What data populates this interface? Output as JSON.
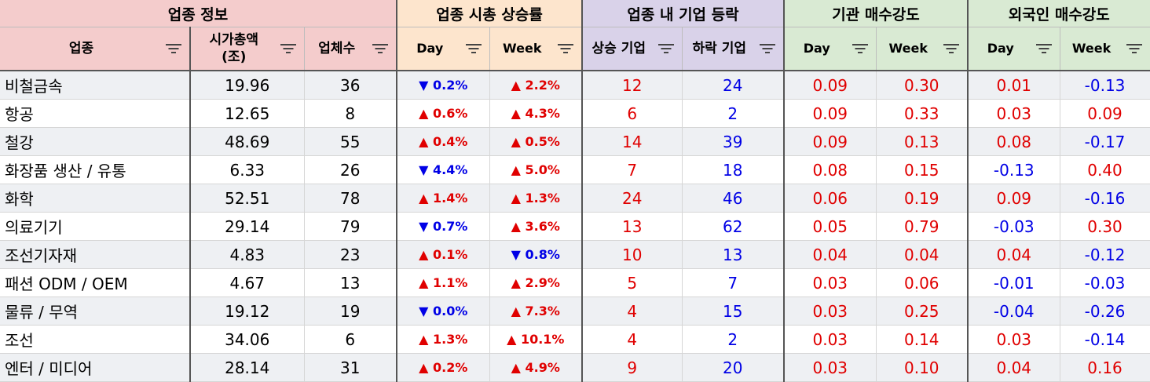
{
  "groups": {
    "info": "업종 정보",
    "mcap_change": "업종 시총 상승률",
    "updown": "업종 내 기업 등락",
    "inst": "기관 매수강도",
    "foreign": "외국인 매수강도"
  },
  "columns": {
    "sector": "업종",
    "mcap_line1": "시가총액",
    "mcap_line2": "(조)",
    "count": "업체수",
    "day": "Day",
    "week": "Week",
    "up": "상승 기업",
    "down": "하락 기업",
    "inst_day": "Day",
    "inst_week": "Week",
    "for_day": "Day",
    "for_week": "Week"
  },
  "colors": {
    "up": "#e00000",
    "down": "#0000e6"
  },
  "rows": [
    {
      "sector": "비철금속",
      "mcap": "19.96",
      "count": "36",
      "day": "▼ 0.2%",
      "day_dir": "down",
      "week": "▲ 2.2%",
      "week_dir": "up",
      "up": "12",
      "down": "24",
      "inst_day": "0.09",
      "inst_week": "0.30",
      "for_day": "0.01",
      "for_week": "-0.13"
    },
    {
      "sector": "항공",
      "mcap": "12.65",
      "count": "8",
      "day": "▲ 0.6%",
      "day_dir": "up",
      "week": "▲ 4.3%",
      "week_dir": "up",
      "up": "6",
      "down": "2",
      "inst_day": "0.09",
      "inst_week": "0.33",
      "for_day": "0.03",
      "for_week": "0.09"
    },
    {
      "sector": "철강",
      "mcap": "48.69",
      "count": "55",
      "day": "▲ 0.4%",
      "day_dir": "up",
      "week": "▲ 0.5%",
      "week_dir": "up",
      "up": "14",
      "down": "39",
      "inst_day": "0.09",
      "inst_week": "0.13",
      "for_day": "0.08",
      "for_week": "-0.17"
    },
    {
      "sector": "화장품 생산 / 유통",
      "mcap": "6.33",
      "count": "26",
      "day": "▼ 4.4%",
      "day_dir": "down",
      "week": "▲ 5.0%",
      "week_dir": "up",
      "up": "7",
      "down": "18",
      "inst_day": "0.08",
      "inst_week": "0.15",
      "for_day": "-0.13",
      "for_week": "0.40"
    },
    {
      "sector": "화학",
      "mcap": "52.51",
      "count": "78",
      "day": "▲ 1.4%",
      "day_dir": "up",
      "week": "▲ 1.3%",
      "week_dir": "up",
      "up": "24",
      "down": "46",
      "inst_day": "0.06",
      "inst_week": "0.19",
      "for_day": "0.09",
      "for_week": "-0.16"
    },
    {
      "sector": "의료기기",
      "mcap": "29.14",
      "count": "79",
      "day": "▼ 0.7%",
      "day_dir": "down",
      "week": "▲ 3.6%",
      "week_dir": "up",
      "up": "13",
      "down": "62",
      "inst_day": "0.05",
      "inst_week": "0.79",
      "for_day": "-0.03",
      "for_week": "0.30"
    },
    {
      "sector": "조선기자재",
      "mcap": "4.83",
      "count": "23",
      "day": "▲ 0.1%",
      "day_dir": "up",
      "week": "▼ 0.8%",
      "week_dir": "down",
      "up": "10",
      "down": "13",
      "inst_day": "0.04",
      "inst_week": "0.04",
      "for_day": "0.04",
      "for_week": "-0.12"
    },
    {
      "sector": "패션 ODM / OEM",
      "mcap": "4.67",
      "count": "13",
      "day": "▲ 1.1%",
      "day_dir": "up",
      "week": "▲ 2.9%",
      "week_dir": "up",
      "up": "5",
      "down": "7",
      "inst_day": "0.03",
      "inst_week": "0.06",
      "for_day": "-0.01",
      "for_week": "-0.03"
    },
    {
      "sector": "물류 / 무역",
      "mcap": "19.12",
      "count": "19",
      "day": "▼ 0.0%",
      "day_dir": "down",
      "week": "▲ 7.3%",
      "week_dir": "up",
      "up": "4",
      "down": "15",
      "inst_day": "0.03",
      "inst_week": "0.25",
      "for_day": "-0.04",
      "for_week": "-0.26"
    },
    {
      "sector": "조선",
      "mcap": "34.06",
      "count": "6",
      "day": "▲ 1.3%",
      "day_dir": "up",
      "week": "▲ 10.1%",
      "week_dir": "up",
      "up": "4",
      "down": "2",
      "inst_day": "0.03",
      "inst_week": "0.14",
      "for_day": "0.03",
      "for_week": "-0.14"
    },
    {
      "sector": "엔터 / 미디어",
      "mcap": "28.14",
      "count": "31",
      "day": "▲ 0.2%",
      "day_dir": "up",
      "week": "▲ 4.9%",
      "week_dir": "up",
      "up": "9",
      "down": "20",
      "inst_day": "0.03",
      "inst_week": "0.10",
      "for_day": "0.04",
      "for_week": "0.16"
    }
  ]
}
